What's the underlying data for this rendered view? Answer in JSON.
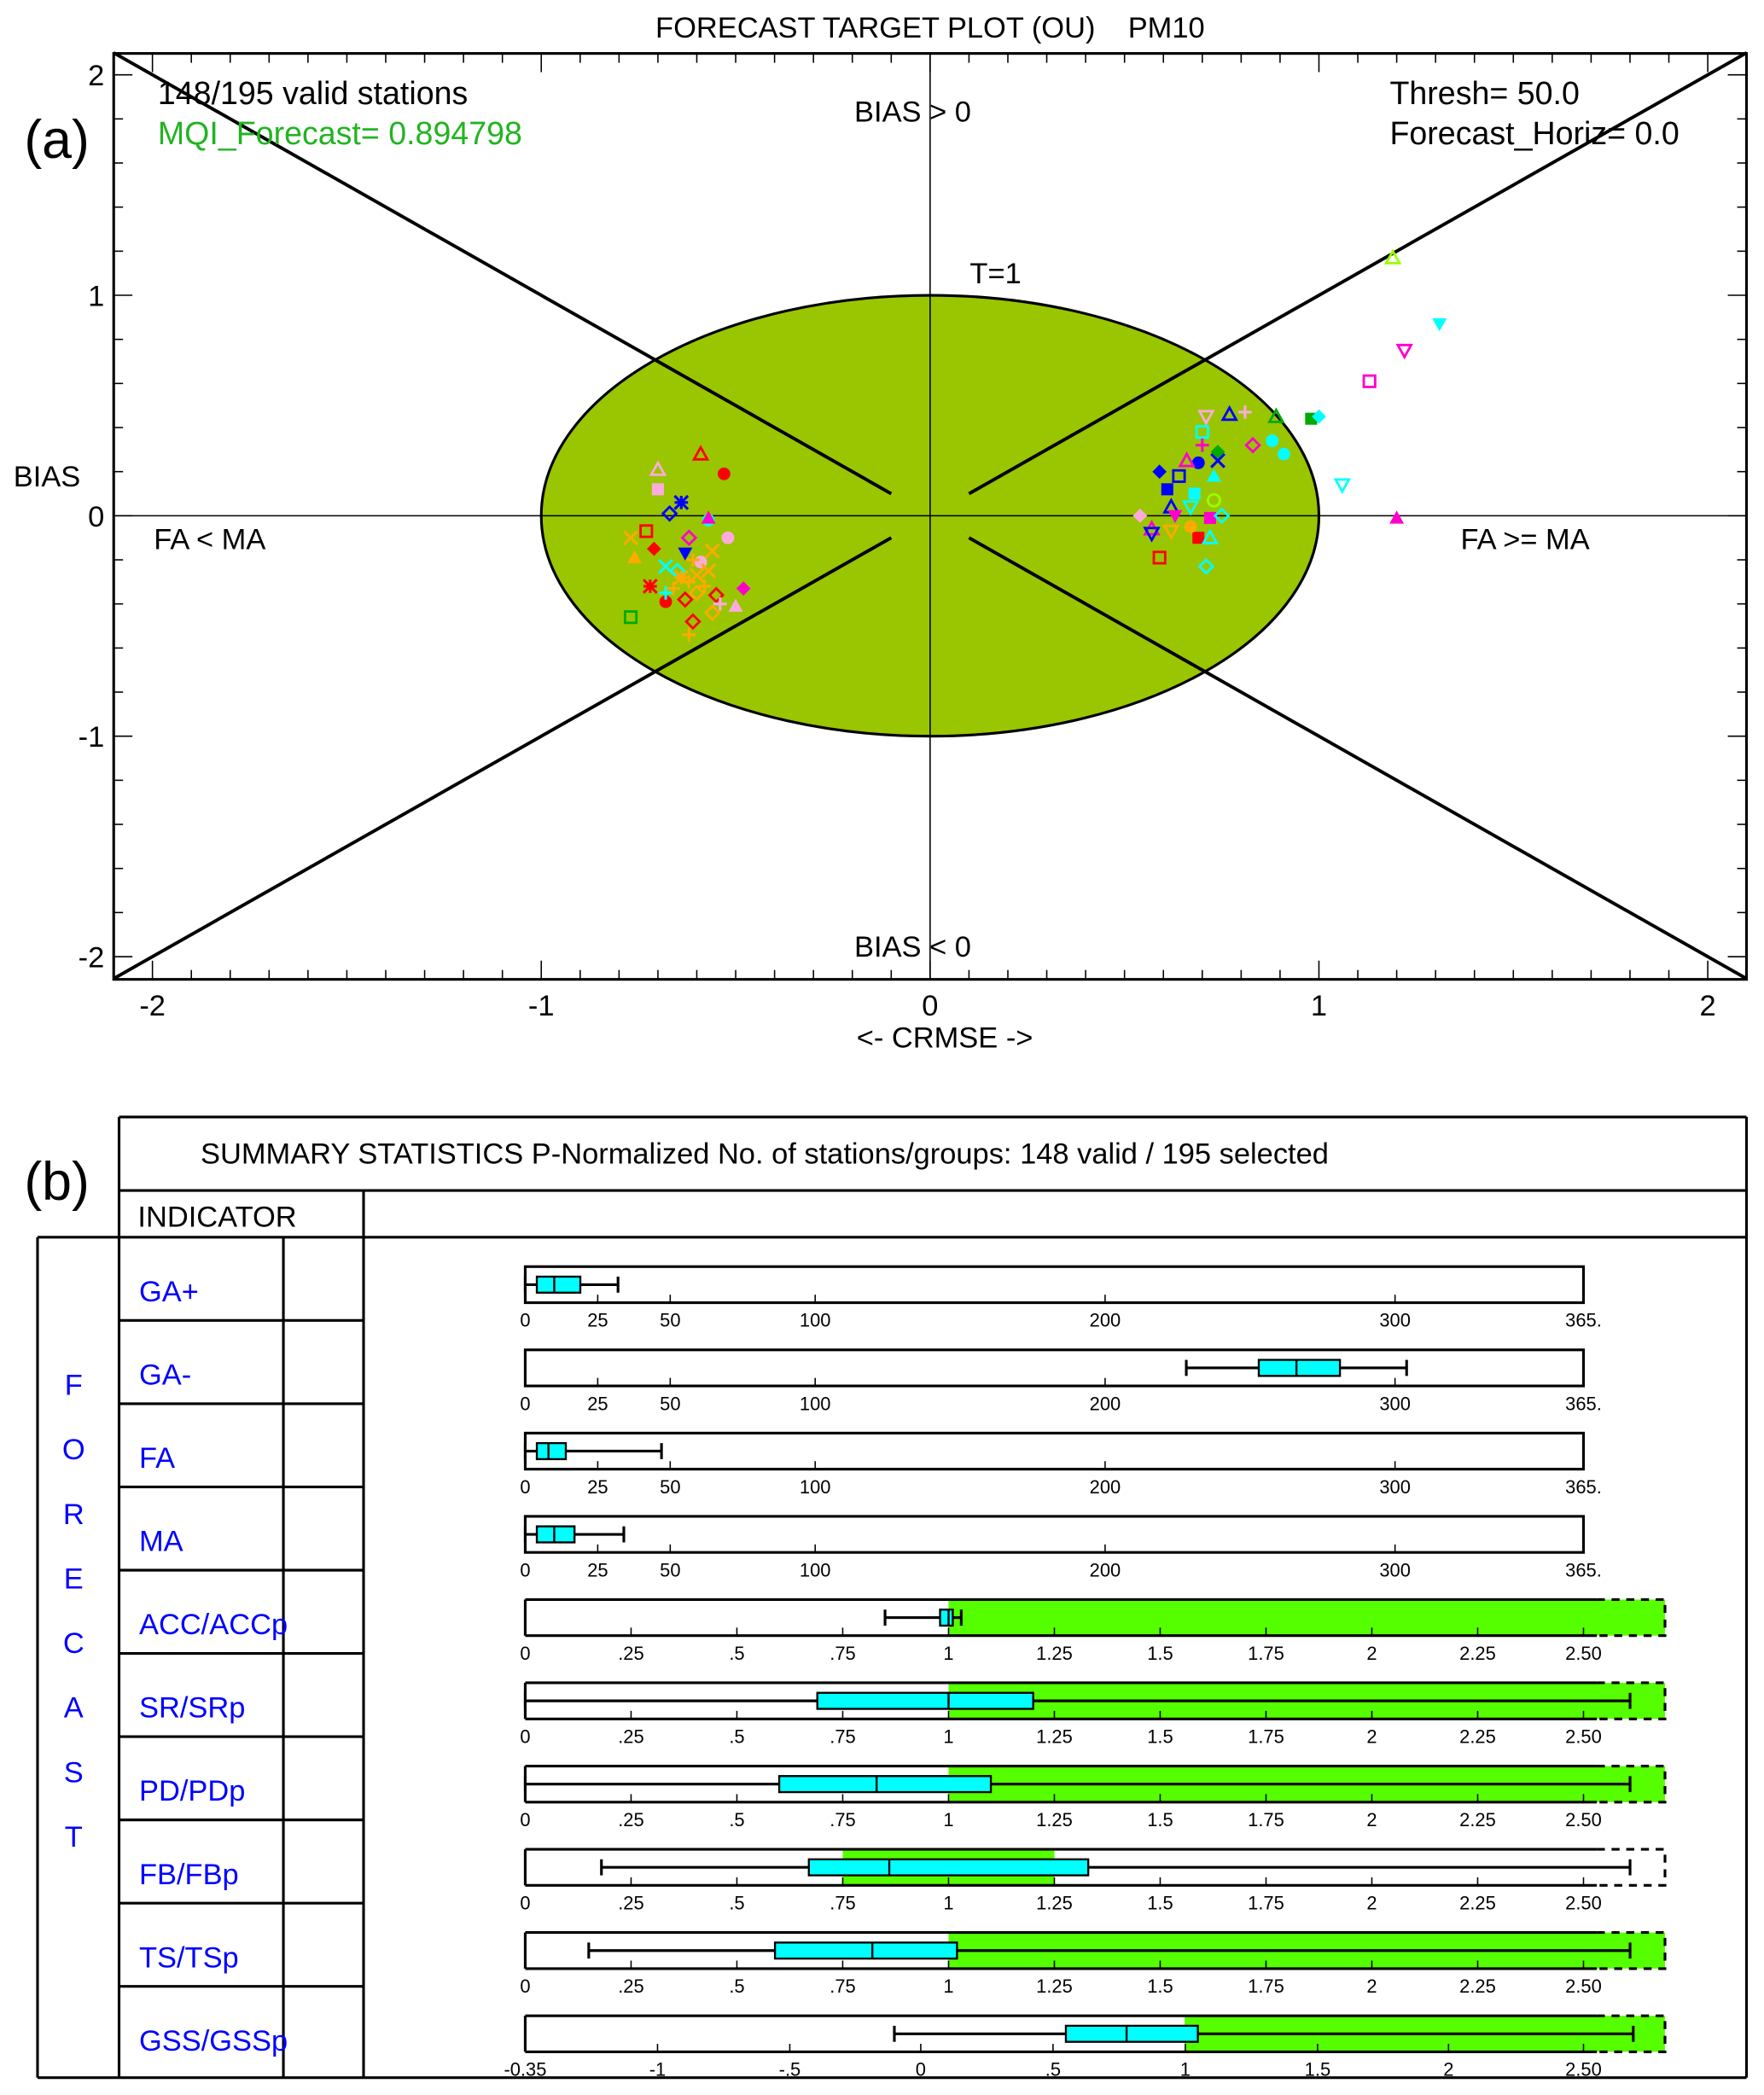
{
  "panel_labels": {
    "a": "(a)",
    "b": "(b)"
  },
  "colors": {
    "ellipse": "#99c600",
    "mqi": "#22b422",
    "good_zone": "#55ff00",
    "box": "#00ffff",
    "indicator_text": "#0000ff"
  },
  "chart_data": [
    {
      "type": "scatter",
      "title": "FORECAST TARGET PLOT (OU)    PM10",
      "xlabel": "<- CRMSE ->",
      "ylabel": "BIAS",
      "xlim": [
        -2.1,
        2.1
      ],
      "ylim": [
        -2.1,
        2.1
      ],
      "xticks": [
        "-2",
        "-1",
        "0",
        "1",
        "2"
      ],
      "yticks": [
        "2",
        "1",
        "0",
        "-1",
        "-2"
      ],
      "grid": false,
      "annotations": {
        "stations": "148/195 valid stations",
        "mqi": "MQI_Forecast= 0.894798",
        "thresh": "Thresh= 50.0",
        "horiz": "Forecast_Horiz= 0.0",
        "bias_pos": "BIAS > 0",
        "bias_neg": "BIAS < 0",
        "target": "T=1",
        "fa_lt_ma": "FA < MA",
        "fa_ge_ma": "FA >= MA"
      },
      "target_radius": 1,
      "points": [
        {
          "x": 1.19,
          "y": 1.17,
          "m": "tri-o",
          "c": "#99ff00"
        },
        {
          "x": 1.31,
          "y": 0.87,
          "m": "dtri",
          "c": "#00ffff"
        },
        {
          "x": 1.22,
          "y": 0.75,
          "m": "dtri-o",
          "c": "#ff00cc"
        },
        {
          "x": 1.13,
          "y": 0.61,
          "m": "sq-o",
          "c": "#ff00cc"
        },
        {
          "x": 0.98,
          "y": 0.44,
          "m": "sq",
          "c": "#00aa00"
        },
        {
          "x": 1.0,
          "y": 0.45,
          "m": "dia",
          "c": "#00ffff"
        },
        {
          "x": 0.89,
          "y": 0.45,
          "m": "tri-o",
          "c": "#00aa00"
        },
        {
          "x": 0.83,
          "y": 0.32,
          "m": "dia-o",
          "c": "#ff00cc"
        },
        {
          "x": 0.88,
          "y": 0.34,
          "m": "circ",
          "c": "#00ffff"
        },
        {
          "x": 0.91,
          "y": 0.28,
          "m": "circ",
          "c": "#00ffff"
        },
        {
          "x": 1.06,
          "y": 0.14,
          "m": "dtri-o",
          "c": "#00ffff"
        },
        {
          "x": 1.2,
          "y": -0.01,
          "m": "tri",
          "c": "#ff00cc"
        },
        {
          "x": 0.77,
          "y": 0.46,
          "m": "tri-o",
          "c": "#0000ff"
        },
        {
          "x": 0.81,
          "y": 0.47,
          "m": "plus",
          "c": "#ffaadd"
        },
        {
          "x": 0.71,
          "y": 0.45,
          "m": "dtri-o",
          "c": "#ffaadd"
        },
        {
          "x": 0.7,
          "y": 0.38,
          "m": "sq-o",
          "c": "#00ffff"
        },
        {
          "x": 0.59,
          "y": 0.2,
          "m": "dia",
          "c": "#0000ff"
        },
        {
          "x": 0.69,
          "y": 0.24,
          "m": "circ",
          "c": "#0000ff"
        },
        {
          "x": 0.74,
          "y": 0.25,
          "m": "x",
          "c": "#0000ff"
        },
        {
          "x": 0.74,
          "y": 0.29,
          "m": "dia",
          "c": "#00aa00"
        },
        {
          "x": 0.7,
          "y": 0.32,
          "m": "plus",
          "c": "#ff00cc"
        },
        {
          "x": 0.66,
          "y": 0.25,
          "m": "tri-o",
          "c": "#ff00cc"
        },
        {
          "x": 0.61,
          "y": 0.12,
          "m": "sq",
          "c": "#0000ff"
        },
        {
          "x": 0.64,
          "y": 0.18,
          "m": "sq-o",
          "c": "#0000ff"
        },
        {
          "x": 0.68,
          "y": 0.1,
          "m": "sq",
          "c": "#00ffff"
        },
        {
          "x": 0.73,
          "y": 0.18,
          "m": "tri",
          "c": "#00ffff"
        },
        {
          "x": 0.54,
          "y": 0.0,
          "m": "dia",
          "c": "#ffaadd"
        },
        {
          "x": 0.62,
          "y": 0.04,
          "m": "tri-o",
          "c": "#0000ff"
        },
        {
          "x": 0.72,
          "y": -0.01,
          "m": "sq",
          "c": "#ff00cc"
        },
        {
          "x": 0.73,
          "y": 0.07,
          "m": "circ-o",
          "c": "#99ff00"
        },
        {
          "x": 0.75,
          "y": 0.0,
          "m": "dia-o",
          "c": "#00ffff"
        },
        {
          "x": 0.69,
          "y": -0.1,
          "m": "sq",
          "c": "#ff0000"
        },
        {
          "x": 0.72,
          "y": -0.1,
          "m": "tri-o",
          "c": "#00ffff"
        },
        {
          "x": 0.59,
          "y": -0.19,
          "m": "sq-o",
          "c": "#ff0000"
        },
        {
          "x": 0.71,
          "y": -0.23,
          "m": "dia-o",
          "c": "#00ffff"
        },
        {
          "x": 0.67,
          "y": -0.05,
          "m": "circ",
          "c": "#ffaa00"
        },
        {
          "x": 0.62,
          "y": -0.07,
          "m": "dtri-o",
          "c": "#ffaa00"
        },
        {
          "x": 0.57,
          "y": -0.06,
          "m": "tri-o",
          "c": "#ff00cc"
        },
        {
          "x": 0.57,
          "y": -0.08,
          "m": "dtri-o",
          "c": "#0000ff"
        },
        {
          "x": 0.63,
          "y": 0.0,
          "m": "dtri",
          "c": "#ff00cc"
        },
        {
          "x": 0.67,
          "y": 0.04,
          "m": "dtri-o",
          "c": "#00ffff"
        },
        {
          "x": -0.59,
          "y": 0.28,
          "m": "tri-o",
          "c": "#ff0000"
        },
        {
          "x": -0.53,
          "y": 0.19,
          "m": "circ",
          "c": "#ff0000"
        },
        {
          "x": -0.7,
          "y": 0.21,
          "m": "tri-o",
          "c": "#ffaadd"
        },
        {
          "x": -0.7,
          "y": 0.12,
          "m": "sq",
          "c": "#ffaadd"
        },
        {
          "x": -0.64,
          "y": 0.06,
          "m": "ast",
          "c": "#0000ff"
        },
        {
          "x": -0.67,
          "y": 0.01,
          "m": "dia-o",
          "c": "#0000ff"
        },
        {
          "x": -0.57,
          "y": -0.02,
          "m": "circ",
          "c": "#00ffff"
        },
        {
          "x": -0.57,
          "y": -0.01,
          "m": "tri",
          "c": "#ff00cc"
        },
        {
          "x": -0.77,
          "y": -0.1,
          "m": "x",
          "c": "#ffaa00"
        },
        {
          "x": -0.73,
          "y": -0.07,
          "m": "sq-o",
          "c": "#ff0000"
        },
        {
          "x": -0.62,
          "y": -0.1,
          "m": "dia-o",
          "c": "#ff00cc"
        },
        {
          "x": -0.52,
          "y": -0.1,
          "m": "circ",
          "c": "#ffaadd"
        },
        {
          "x": -0.71,
          "y": -0.15,
          "m": "dia",
          "c": "#ff0000"
        },
        {
          "x": -0.63,
          "y": -0.17,
          "m": "dtri",
          "c": "#0000ff"
        },
        {
          "x": -0.76,
          "y": -0.19,
          "m": "tri",
          "c": "#ffaa00"
        },
        {
          "x": -0.68,
          "y": -0.23,
          "m": "x",
          "c": "#00ffff"
        },
        {
          "x": -0.65,
          "y": -0.25,
          "m": "dia-o",
          "c": "#00ffff"
        },
        {
          "x": -0.59,
          "y": -0.21,
          "m": "circ",
          "c": "#ffaadd"
        },
        {
          "x": -0.56,
          "y": -0.16,
          "m": "x",
          "c": "#ffaa00"
        },
        {
          "x": -0.72,
          "y": -0.32,
          "m": "ast",
          "c": "#ff0000"
        },
        {
          "x": -0.68,
          "y": -0.39,
          "m": "circ",
          "c": "#ff0000"
        },
        {
          "x": -0.68,
          "y": -0.35,
          "m": "plus",
          "c": "#00ffff"
        },
        {
          "x": -0.48,
          "y": -0.33,
          "m": "dia",
          "c": "#ff00cc"
        },
        {
          "x": -0.55,
          "y": -0.36,
          "m": "dia-o",
          "c": "#ff0000"
        },
        {
          "x": -0.54,
          "y": -0.4,
          "m": "plus",
          "c": "#ffaadd"
        },
        {
          "x": -0.5,
          "y": -0.41,
          "m": "tri",
          "c": "#ffaadd"
        },
        {
          "x": -0.56,
          "y": -0.44,
          "m": "dia-o",
          "c": "#ffaa00"
        },
        {
          "x": -0.61,
          "y": -0.48,
          "m": "dia-o",
          "c": "#ff0000"
        },
        {
          "x": -0.62,
          "y": -0.54,
          "m": "plus",
          "c": "#ffaa00"
        },
        {
          "x": -0.77,
          "y": -0.46,
          "m": "sq-o",
          "c": "#00aa00"
        },
        {
          "x": -0.62,
          "y": -0.3,
          "m": "plus",
          "c": "#ffaa00"
        },
        {
          "x": -0.6,
          "y": -0.27,
          "m": "x",
          "c": "#ffaa00"
        },
        {
          "x": -0.58,
          "y": -0.32,
          "m": "plus",
          "c": "#ffaa00"
        },
        {
          "x": -0.64,
          "y": -0.28,
          "m": "ast",
          "c": "#ffaa00"
        },
        {
          "x": -0.57,
          "y": -0.25,
          "m": "x",
          "c": "#ffaa00"
        },
        {
          "x": -0.63,
          "y": -0.38,
          "m": "dia-o",
          "c": "#ff0000"
        },
        {
          "x": -0.6,
          "y": -0.35,
          "m": "dia-o",
          "c": "#ffaa00"
        },
        {
          "x": -0.61,
          "y": -0.2,
          "m": "plus",
          "c": "#ffaa00"
        },
        {
          "x": -0.66,
          "y": -0.33,
          "m": "plus",
          "c": "#ffaa00"
        }
      ]
    },
    {
      "type": "table",
      "title": "SUMMARY STATISTICS P-Normalized  No. of stations/groups: 148 valid / 195 selected",
      "column_header": "INDICATOR",
      "group_label": [
        "F",
        "O",
        "R",
        "E",
        "C",
        "A",
        "S",
        "T"
      ],
      "count_ticks": [
        "0",
        "25",
        "50",
        "100",
        "200",
        "300",
        "365."
      ],
      "ratio_ticks": [
        "0",
        ".25",
        ".5",
        ".75",
        "1",
        "1.25",
        "1.5",
        "1.75",
        "2",
        "2.25",
        "2.50"
      ],
      "gss_ticks": [
        "-0.35",
        "-1",
        "-.5",
        "0",
        ".5",
        "1",
        "1.5",
        "2",
        "2.50"
      ],
      "rows": [
        {
          "label": "GA+",
          "scale": "count",
          "min": 0,
          "q1": 4,
          "median": 10,
          "q3": 19,
          "max": 32
        },
        {
          "label": "GA-",
          "scale": "count",
          "min": 228,
          "q1": 253,
          "median": 266,
          "q3": 281,
          "max": 304
        },
        {
          "label": "FA",
          "scale": "count",
          "min": 0,
          "q1": 4,
          "median": 8,
          "q3": 14,
          "max": 47
        },
        {
          "label": "MA",
          "scale": "count",
          "min": 0,
          "q1": 4,
          "median": 10,
          "q3": 17,
          "max": 34
        },
        {
          "label": "ACC/ACCp",
          "scale": "ratio",
          "min": 0.85,
          "q1": 0.98,
          "median": 1.0,
          "q3": 1.01,
          "max": 1.03,
          "good": [
            1,
            2.85
          ]
        },
        {
          "label": "SR/SRp",
          "scale": "ratio",
          "min": 0,
          "q1": 0.69,
          "median": 1.0,
          "q3": 1.2,
          "max": 2.61,
          "good": [
            1,
            2.85
          ]
        },
        {
          "label": "PD/PDp",
          "scale": "ratio",
          "min": 0,
          "q1": 0.6,
          "median": 0.83,
          "q3": 1.1,
          "max": 2.61,
          "good": [
            1,
            2.85
          ]
        },
        {
          "label": "FB/FBp",
          "scale": "ratio",
          "min": 0.18,
          "q1": 0.67,
          "median": 0.86,
          "q3": 1.33,
          "max": 2.61,
          "good": [
            0.75,
            1.25
          ]
        },
        {
          "label": "TS/TSp",
          "scale": "ratio",
          "min": 0.15,
          "q1": 0.59,
          "median": 0.82,
          "q3": 1.02,
          "max": 2.61,
          "good": [
            1,
            2.85
          ]
        },
        {
          "label": "GSS/GSSp",
          "scale": "gss",
          "min": -0.1,
          "q1": 0.55,
          "median": 0.78,
          "q3": 1.05,
          "max": 2.7,
          "good": [
            1,
            2.82
          ]
        }
      ]
    }
  ]
}
